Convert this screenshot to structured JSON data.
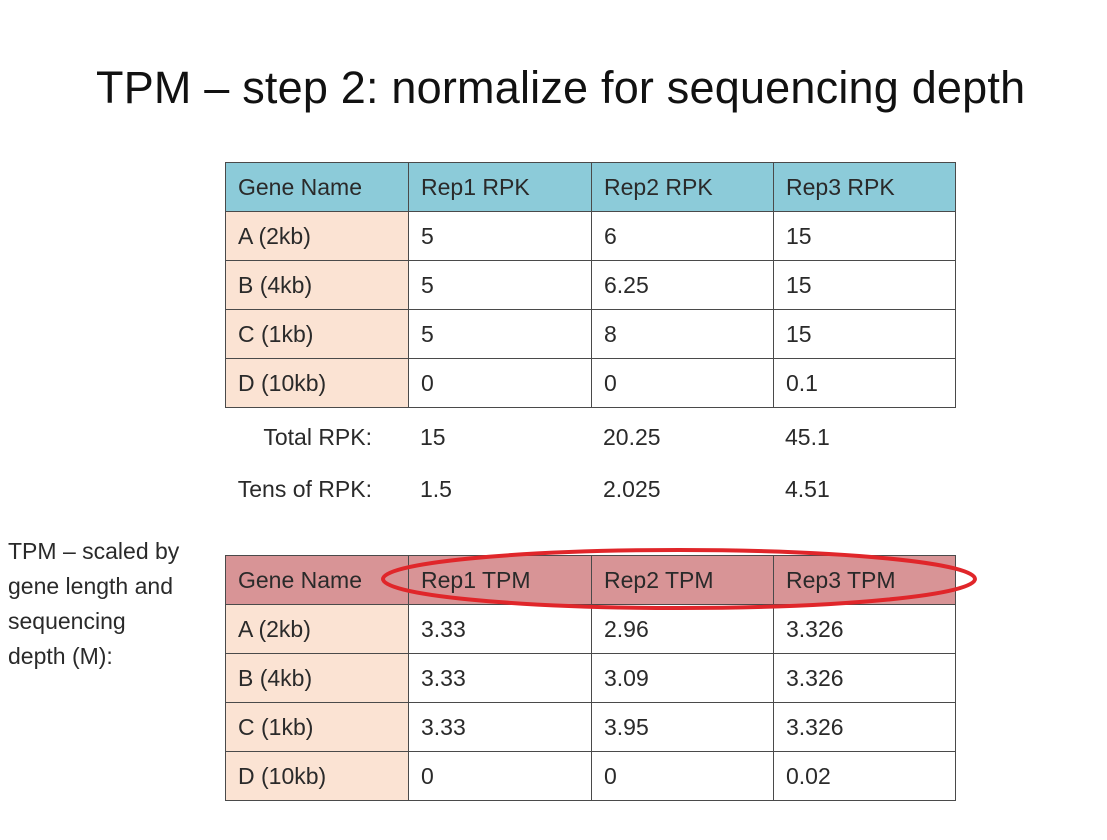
{
  "title": "TPM – step 2: normalize for sequencing depth",
  "rpk_table": {
    "headers": [
      "Gene Name",
      "Rep1 RPK",
      "Rep2 RPK",
      "Rep3 RPK"
    ],
    "rows": [
      [
        "A (2kb)",
        "5",
        "6",
        "15"
      ],
      [
        "B (4kb)",
        "5",
        "6.25",
        "15"
      ],
      [
        "C (1kb)",
        "5",
        "8",
        "15"
      ],
      [
        "D (10kb)",
        "0",
        "0",
        "0.1"
      ]
    ]
  },
  "totals": {
    "total_rpk": {
      "label": "Total RPK:",
      "values": [
        "15",
        "20.25",
        "45.1"
      ]
    },
    "tens_of_rpk": {
      "label": "Tens of RPK:",
      "values": [
        "1.5",
        "2.025",
        "4.51"
      ]
    }
  },
  "side_label": [
    "TPM – scaled by",
    "gene length and",
    "sequencing",
    "depth (M):"
  ],
  "tpm_table": {
    "headers": [
      "Gene Name",
      "Rep1 TPM",
      "Rep2 TPM",
      "Rep3 TPM"
    ],
    "rows": [
      [
        "A (2kb)",
        "3.33",
        "2.96",
        "3.326"
      ],
      [
        "B (4kb)",
        "3.33",
        "3.09",
        "3.326"
      ],
      [
        "C (1kb)",
        "3.33",
        "3.95",
        "3.326"
      ],
      [
        "D (10kb)",
        "0",
        "0",
        "0.02"
      ]
    ]
  },
  "colors": {
    "rpk_header": "#8ccbd9",
    "tpm_header": "#d89496",
    "gene_cell": "#fbe3d3",
    "highlight_ellipse": "#e0262a"
  }
}
